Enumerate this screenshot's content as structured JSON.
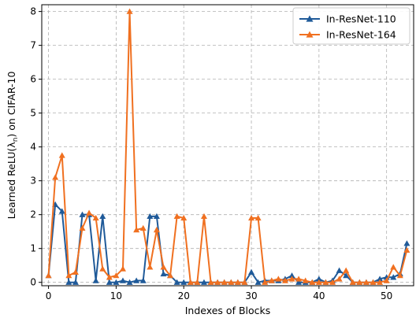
{
  "chart_data": {
    "type": "line",
    "xlabel": "Indexes of Blocks",
    "ylabel": "Learned ReLU(λ",
    "ylabel_sub": "n",
    "ylabel_tail": ") on CIFAR-10",
    "xlim": [
      -1,
      54
    ],
    "ylim": [
      -0.1,
      8.2
    ],
    "xticks": [
      0,
      10,
      20,
      30,
      40,
      50
    ],
    "yticks": [
      0,
      1,
      2,
      3,
      4,
      5,
      6,
      7,
      8
    ],
    "grid": true,
    "legend_position": "top-right",
    "series": [
      {
        "name": "In-ResNet-110",
        "color": "#1f5a99",
        "marker": "triangle",
        "x": [
          0,
          1,
          2,
          3,
          4,
          5,
          6,
          7,
          8,
          9,
          10,
          11,
          12,
          13,
          14,
          15,
          16,
          17,
          18,
          19,
          20,
          21,
          22,
          23,
          24,
          25,
          26,
          27,
          28,
          29,
          30,
          31,
          32,
          33,
          34,
          35,
          36,
          37,
          38,
          39,
          40,
          41,
          42,
          43,
          44,
          45,
          46,
          47,
          48,
          49,
          50,
          51,
          52,
          53
        ],
        "y": [
          0.2,
          2.3,
          2.1,
          0.0,
          0.0,
          2.0,
          2.0,
          0.05,
          1.95,
          0.0,
          0.0,
          0.05,
          0.0,
          0.05,
          0.05,
          1.95,
          1.95,
          0.25,
          0.2,
          0.0,
          0.0,
          0.0,
          0.0,
          0.0,
          0.0,
          0.0,
          0.0,
          0.0,
          0.0,
          0.0,
          0.3,
          0.0,
          0.05,
          0.05,
          0.05,
          0.1,
          0.2,
          0.0,
          0.0,
          0.0,
          0.1,
          0.0,
          0.05,
          0.35,
          0.2,
          0.0,
          0.0,
          0.0,
          0.0,
          0.1,
          0.15,
          0.15,
          0.25,
          1.15
        ]
      },
      {
        "name": "In-ResNet-164",
        "color": "#f07020",
        "marker": "triangle",
        "x": [
          0,
          1,
          2,
          3,
          4,
          5,
          6,
          7,
          8,
          9,
          10,
          11,
          12,
          13,
          14,
          15,
          16,
          17,
          18,
          19,
          20,
          21,
          22,
          23,
          24,
          25,
          26,
          27,
          28,
          29,
          30,
          31,
          32,
          33,
          34,
          35,
          36,
          37,
          38,
          39,
          40,
          41,
          42,
          43,
          44,
          45,
          46,
          47,
          48,
          49,
          50,
          51,
          52,
          53
        ],
        "y": [
          0.2,
          3.1,
          3.75,
          0.2,
          0.3,
          1.6,
          2.05,
          1.9,
          0.4,
          0.15,
          0.2,
          0.4,
          8.0,
          1.55,
          1.6,
          0.45,
          1.55,
          0.45,
          0.2,
          1.95,
          1.9,
          0.0,
          0.0,
          1.95,
          0.0,
          0.0,
          0.0,
          0.0,
          0.0,
          0.0,
          1.9,
          1.9,
          0.0,
          0.05,
          0.1,
          0.05,
          0.1,
          0.1,
          0.05,
          0.0,
          0.0,
          0.0,
          0.0,
          0.1,
          0.35,
          0.0,
          0.0,
          0.0,
          0.0,
          0.0,
          0.05,
          0.45,
          0.2,
          0.95
        ]
      }
    ]
  }
}
